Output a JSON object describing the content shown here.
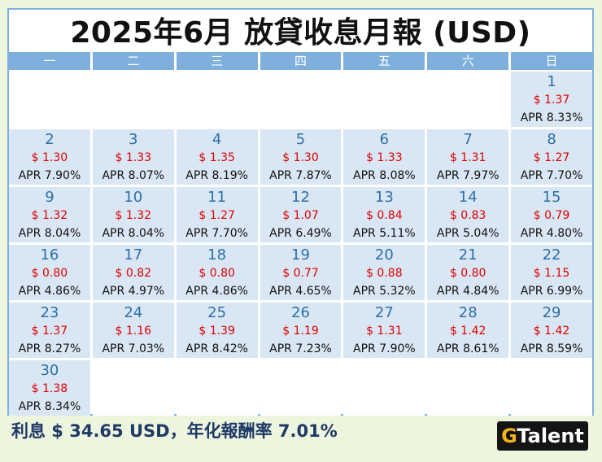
{
  "title": "2025年6月 放貸收息月報 (USD)",
  "weekdays": [
    "一",
    "二",
    "三",
    "四",
    "五",
    "六",
    "日"
  ],
  "days": [
    {
      "day": "1",
      "amount": "$ 1.37",
      "apr": "APR 8.33%"
    },
    {
      "day": "2",
      "amount": "$ 1.30",
      "apr": "APR 7.90%"
    },
    {
      "day": "3",
      "amount": "$ 1.33",
      "apr": "APR 8.07%"
    },
    {
      "day": "4",
      "amount": "$ 1.35",
      "apr": "APR 8.19%"
    },
    {
      "day": "5",
      "amount": "$ 1.30",
      "apr": "APR 7.87%"
    },
    {
      "day": "6",
      "amount": "$ 1.33",
      "apr": "APR 8.08%"
    },
    {
      "day": "7",
      "amount": "$ 1.31",
      "apr": "APR 7.97%"
    },
    {
      "day": "8",
      "amount": "$ 1.27",
      "apr": "APR 7.70%"
    },
    {
      "day": "9",
      "amount": "$ 1.32",
      "apr": "APR 8.04%"
    },
    {
      "day": "10",
      "amount": "$ 1.32",
      "apr": "APR 8.04%"
    },
    {
      "day": "11",
      "amount": "$ 1.27",
      "apr": "APR 7.70%"
    },
    {
      "day": "12",
      "amount": "$ 1.07",
      "apr": "APR 6.49%"
    },
    {
      "day": "13",
      "amount": "$ 0.84",
      "apr": "APR 5.11%"
    },
    {
      "day": "14",
      "amount": "$ 0.83",
      "apr": "APR 5.04%"
    },
    {
      "day": "15",
      "amount": "$ 0.79",
      "apr": "APR 4.80%"
    },
    {
      "day": "16",
      "amount": "$ 0.80",
      "apr": "APR 4.86%"
    },
    {
      "day": "17",
      "amount": "$ 0.82",
      "apr": "APR 4.97%"
    },
    {
      "day": "18",
      "amount": "$ 0.80",
      "apr": "APR 4.86%"
    },
    {
      "day": "19",
      "amount": "$ 0.77",
      "apr": "APR 4.65%"
    },
    {
      "day": "20",
      "amount": "$ 0.88",
      "apr": "APR 5.32%"
    },
    {
      "day": "21",
      "amount": "$ 0.80",
      "apr": "APR 4.84%"
    },
    {
      "day": "22",
      "amount": "$ 1.15",
      "apr": "APR 6.99%"
    },
    {
      "day": "23",
      "amount": "$ 1.37",
      "apr": "APR 8.27%"
    },
    {
      "day": "24",
      "amount": "$ 1.16",
      "apr": "APR 7.03%"
    },
    {
      "day": "25",
      "amount": "$ 1.39",
      "apr": "APR 8.42%"
    },
    {
      "day": "26",
      "amount": "$ 1.19",
      "apr": "APR 7.23%"
    },
    {
      "day": "27",
      "amount": "$ 1.31",
      "apr": "APR 7.90%"
    },
    {
      "day": "28",
      "amount": "$ 1.42",
      "apr": "APR 8.61%"
    },
    {
      "day": "29",
      "amount": "$ 1.42",
      "apr": "APR 8.59%"
    },
    {
      "day": "30",
      "amount": "$ 1.38",
      "apr": "APR 8.34%"
    }
  ],
  "summary": "利息 $ 34.65 USD，年化報酬率 7.01%",
  "logo": {
    "accent": "G",
    "rest": "Talent"
  },
  "colors": {
    "header_bg": "#7fb0dd",
    "cell_bg": "#d9e6f3",
    "amount": "#e00000",
    "day": "#2d6fa8",
    "page_bg": "#eef5df"
  }
}
